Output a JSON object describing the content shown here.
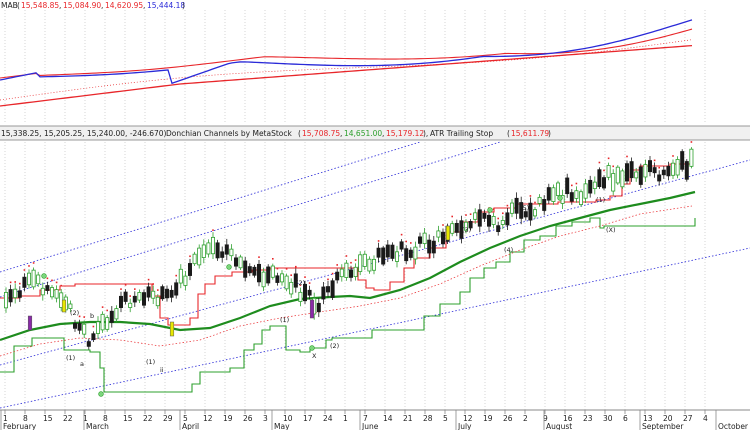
{
  "top_panel": {
    "prefix": "MAB",
    "values": [
      {
        "text": "15,548.85",
        "color": "#e8262a"
      },
      {
        "text": "15,084.90",
        "color": "#e8262a"
      },
      {
        "text": "14,620.95",
        "color": "#e8262a"
      },
      {
        "text": "15,444.18",
        "color": "#2a2ad8"
      }
    ]
  },
  "main_panel": {
    "ohlc_text": "15,338.25, 15,205.25, 15,240.00, -246.670)",
    "donchian_label": "Donchian Channels by MetaStock",
    "donchian_values": [
      {
        "text": "15,708.75",
        "color": "#e8262a"
      },
      {
        "text": "14,651.00",
        "color": "#2ea02e"
      },
      {
        "text": "15,179.12",
        "color": "#e8262a"
      }
    ],
    "atr_label": "ATR Trailing Stop",
    "atr_value": {
      "text": "15,611.79",
      "color": "#e8262a"
    }
  },
  "colors": {
    "red": "#e8262a",
    "blue": "#2a2ad8",
    "green": "#1e8c1e",
    "grid": "#b8b8b8"
  },
  "x_axis": {
    "day_ticks": [
      "1",
      "8",
      "15",
      "22",
      "1",
      "8",
      "15",
      "22",
      "29",
      "5",
      "12",
      "19",
      "26",
      "3",
      "10",
      "17",
      "24",
      "1",
      "7",
      "14",
      "21",
      "28",
      "5",
      "12",
      "19",
      "26",
      "2",
      "9",
      "16",
      "23",
      "30",
      "6",
      "13",
      "20",
      "27",
      "4"
    ],
    "month_labels": [
      "February",
      "March",
      "April",
      "May",
      "June",
      "July",
      "August",
      "September",
      "October"
    ]
  },
  "wave_labels": [
    "(2)",
    "b",
    "a",
    "(1)",
    "(1)",
    "ii",
    "(2)",
    "(1)",
    "(2)",
    "(1)",
    "(4)",
    "(3)",
    "(5)",
    "(X)",
    "X"
  ],
  "chart_data": {
    "type": "candlestick",
    "close_series": [
      0.5,
      0.54,
      0.57,
      0.55,
      0.42,
      0.3,
      0.4,
      0.47,
      0.52,
      0.5,
      0.56,
      0.68,
      0.72,
      0.7,
      0.66,
      0.6,
      0.62,
      0.52,
      0.48,
      0.6,
      0.64,
      0.68,
      0.7,
      0.74,
      0.76,
      0.8,
      0.86,
      0.88,
      0.86,
      0.92,
      0.94,
      0.98,
      1.02,
      1.0,
      1.08,
      1.1,
      1.12,
      1.1,
      1.14,
      1.16
    ]
  }
}
